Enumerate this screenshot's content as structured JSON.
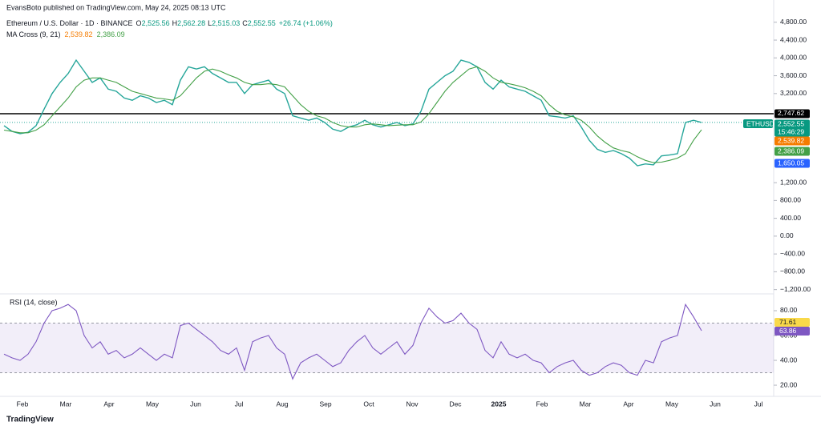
{
  "header": {
    "publisher": "EvansBoto published on TradingView.com, May 24, 2025 08:13 UTC",
    "symbol": "Ethereum / U.S. Dollar · 1D · BINANCE",
    "ohlc": [
      {
        "key": "O",
        "value": "2,525.56"
      },
      {
        "key": "H",
        "value": "2,562.28"
      },
      {
        "key": "L",
        "value": "2,515.03"
      },
      {
        "key": "C",
        "value": "2,552.55"
      }
    ],
    "change": "+26.74 (+1.06%)",
    "indicator": "MA Cross (9, 21)",
    "indicator_values": [
      "2,539.82",
      "2,386.09"
    ]
  },
  "chart_data": [
    {
      "type": "line",
      "ylim": [
        -1260,
        4940
      ],
      "yticks": [
        {
          "value": 4800,
          "label": "4,800.00"
        },
        {
          "value": 4400,
          "label": "4,400.00"
        },
        {
          "value": 4000,
          "label": "4,000.00"
        },
        {
          "value": 3600,
          "label": "3,600.00"
        },
        {
          "value": 3200,
          "label": "3,200.00"
        },
        {
          "value": 1200,
          "label": "1,200.00"
        },
        {
          "value": 800,
          "label": "800.00"
        },
        {
          "value": 400,
          "label": "400.00"
        },
        {
          "value": 0,
          "label": "0.00"
        },
        {
          "value": -400,
          "label": "−400.00"
        },
        {
          "value": -800,
          "label": "−800.00"
        },
        {
          "value": -1200,
          "label": "−1,200.00"
        }
      ],
      "hline": {
        "value": 2747.62,
        "label": "2,747.62"
      },
      "series": [
        {
          "name": "ETHUSD",
          "color": "#26a69a",
          "values": [
            2480,
            2350,
            2300,
            2330,
            2480,
            2850,
            3200,
            3450,
            3650,
            3950,
            3700,
            3450,
            3550,
            3300,
            3250,
            3100,
            3050,
            3150,
            3100,
            3000,
            3050,
            2950,
            3500,
            3800,
            3750,
            3800,
            3650,
            3550,
            3450,
            3450,
            3200,
            3400,
            3450,
            3500,
            3300,
            3200,
            2700,
            2650,
            2600,
            2650,
            2550,
            2400,
            2350,
            2450,
            2500,
            2600,
            2500,
            2450,
            2500,
            2550,
            2480,
            2520,
            2800,
            3300,
            3450,
            3600,
            3700,
            3950,
            3900,
            3800,
            3450,
            3300,
            3500,
            3350,
            3300,
            3250,
            3150,
            3050,
            2700,
            2680,
            2650,
            2700,
            2450,
            2150,
            1950,
            1880,
            1920,
            1850,
            1750,
            1580,
            1620,
            1600,
            1800,
            1820,
            1850,
            2550,
            2600,
            2552.55
          ]
        },
        {
          "color": "#43a047",
          "values": [
            2380,
            2350,
            2320,
            2320,
            2380,
            2500,
            2700,
            2900,
            3100,
            3350,
            3500,
            3550,
            3550,
            3500,
            3450,
            3350,
            3250,
            3200,
            3150,
            3100,
            3080,
            3050,
            3150,
            3350,
            3550,
            3700,
            3750,
            3700,
            3620,
            3550,
            3450,
            3400,
            3400,
            3420,
            3400,
            3350,
            3150,
            2950,
            2800,
            2700,
            2650,
            2550,
            2480,
            2450,
            2450,
            2500,
            2520,
            2500,
            2480,
            2490,
            2500,
            2500,
            2560,
            2750,
            3000,
            3250,
            3450,
            3600,
            3750,
            3800,
            3700,
            3550,
            3450,
            3420,
            3380,
            3330,
            3250,
            3150,
            2950,
            2800,
            2720,
            2680,
            2600,
            2450,
            2250,
            2100,
            1980,
            1920,
            1880,
            1780,
            1700,
            1650,
            1660,
            1700,
            1750,
            1850,
            2150,
            2386.09
          ]
        }
      ],
      "last_labels": {
        "symbol": "ETHUSD",
        "price": "2,552.55",
        "countdown": "15:46:29",
        "ma_fast": "2,539.82",
        "ma_slow": "2,386.09",
        "low": "1,650.05"
      }
    },
    {
      "type": "line",
      "title": "RSI (14, close)",
      "ylim": [
        11,
        91.6
      ],
      "yticks": [
        {
          "value": 80,
          "label": "80.00"
        },
        {
          "value": 60,
          "label": "60.00"
        },
        {
          "value": 40,
          "label": "40.00"
        },
        {
          "value": 20,
          "label": "20.00"
        }
      ],
      "band": [
        30,
        70
      ],
      "series": [
        {
          "color": "#7e57c2",
          "values": [
            45,
            42,
            40,
            45,
            55,
            70,
            80,
            82,
            85,
            80,
            60,
            50,
            55,
            45,
            48,
            42,
            45,
            50,
            45,
            40,
            45,
            42,
            68,
            70,
            65,
            60,
            55,
            48,
            45,
            50,
            32,
            55,
            58,
            60,
            50,
            45,
            25,
            38,
            42,
            45,
            40,
            35,
            38,
            48,
            55,
            60,
            50,
            45,
            50,
            55,
            45,
            52,
            70,
            82,
            75,
            70,
            72,
            78,
            70,
            65,
            48,
            42,
            55,
            45,
            42,
            45,
            40,
            38,
            30,
            35,
            38,
            40,
            32,
            28,
            30,
            35,
            38,
            36,
            30,
            28,
            40,
            38,
            55,
            58,
            60,
            85,
            75,
            63.86
          ]
        }
      ],
      "value_labels": [
        "63.86",
        "71.61"
      ],
      "xtick_labels": [
        "Feb",
        "Mar",
        "Apr",
        "May",
        "Jun",
        "Jul",
        "Aug",
        "Sep",
        "Oct",
        "Nov",
        "Dec",
        "2025",
        "Feb",
        "Mar",
        "Apr",
        "May",
        "Jun",
        "Jul"
      ]
    }
  ],
  "footer": "TradingView"
}
